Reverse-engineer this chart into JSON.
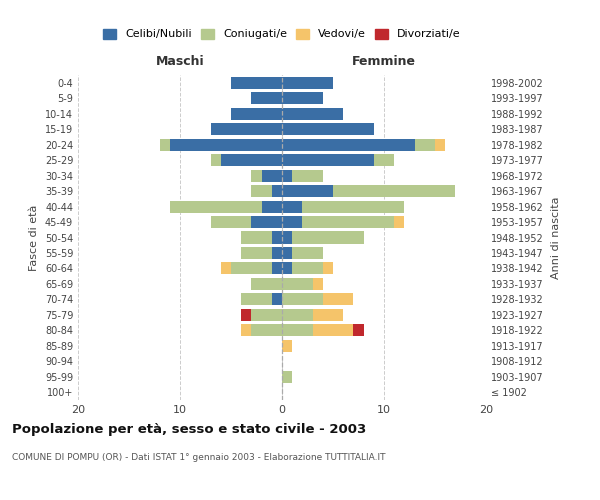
{
  "age_groups": [
    "100+",
    "95-99",
    "90-94",
    "85-89",
    "80-84",
    "75-79",
    "70-74",
    "65-69",
    "60-64",
    "55-59",
    "50-54",
    "45-49",
    "40-44",
    "35-39",
    "30-34",
    "25-29",
    "20-24",
    "15-19",
    "10-14",
    "5-9",
    "0-4"
  ],
  "birth_years": [
    "≤ 1902",
    "1903-1907",
    "1908-1912",
    "1913-1917",
    "1918-1922",
    "1923-1927",
    "1928-1932",
    "1933-1937",
    "1938-1942",
    "1943-1947",
    "1948-1952",
    "1953-1957",
    "1958-1962",
    "1963-1967",
    "1968-1972",
    "1973-1977",
    "1978-1982",
    "1983-1987",
    "1988-1992",
    "1993-1997",
    "1998-2002"
  ],
  "males": {
    "celibi": [
      0,
      0,
      0,
      0,
      0,
      0,
      1,
      0,
      1,
      1,
      1,
      3,
      2,
      1,
      2,
      6,
      11,
      7,
      5,
      3,
      5
    ],
    "coniugati": [
      0,
      0,
      0,
      0,
      3,
      3,
      3,
      3,
      4,
      3,
      3,
      4,
      9,
      2,
      1,
      1,
      1,
      0,
      0,
      0,
      0
    ],
    "vedovi": [
      0,
      0,
      0,
      0,
      1,
      0,
      0,
      0,
      1,
      0,
      0,
      0,
      0,
      0,
      0,
      0,
      0,
      0,
      0,
      0,
      0
    ],
    "divorziati": [
      0,
      0,
      0,
      0,
      0,
      1,
      0,
      0,
      0,
      0,
      0,
      0,
      0,
      0,
      0,
      0,
      0,
      0,
      0,
      0,
      0
    ]
  },
  "females": {
    "nubili": [
      0,
      0,
      0,
      0,
      0,
      0,
      0,
      0,
      1,
      1,
      1,
      2,
      2,
      5,
      1,
      9,
      13,
      9,
      6,
      4,
      5
    ],
    "coniugate": [
      0,
      1,
      0,
      0,
      3,
      3,
      4,
      3,
      3,
      3,
      7,
      9,
      10,
      12,
      3,
      2,
      2,
      0,
      0,
      0,
      0
    ],
    "vedove": [
      0,
      0,
      0,
      1,
      4,
      3,
      3,
      1,
      1,
      0,
      0,
      1,
      0,
      0,
      0,
      0,
      1,
      0,
      0,
      0,
      0
    ],
    "divorziate": [
      0,
      0,
      0,
      0,
      1,
      0,
      0,
      0,
      0,
      0,
      0,
      0,
      0,
      0,
      0,
      0,
      0,
      0,
      0,
      0,
      0
    ]
  },
  "colors": {
    "celibi_nubili": "#3a6ea5",
    "coniugati": "#b5c98e",
    "vedovi": "#f5c46a",
    "divorziati": "#c0282d"
  },
  "title": "Popolazione per età, sesso e stato civile - 2003",
  "subtitle": "COMUNE DI POMPU (OR) - Dati ISTAT 1° gennaio 2003 - Elaborazione TUTTITALIA.IT",
  "label_maschi": "Maschi",
  "label_femmine": "Femmine",
  "ylabel_left": "Fasce di età",
  "ylabel_right": "Anni di nascita",
  "xlim": 20,
  "bg_color": "#ffffff",
  "grid_color": "#cccccc",
  "legend_labels": [
    "Celibi/Nubili",
    "Coniugati/e",
    "Vedovi/e",
    "Divorziati/e"
  ]
}
